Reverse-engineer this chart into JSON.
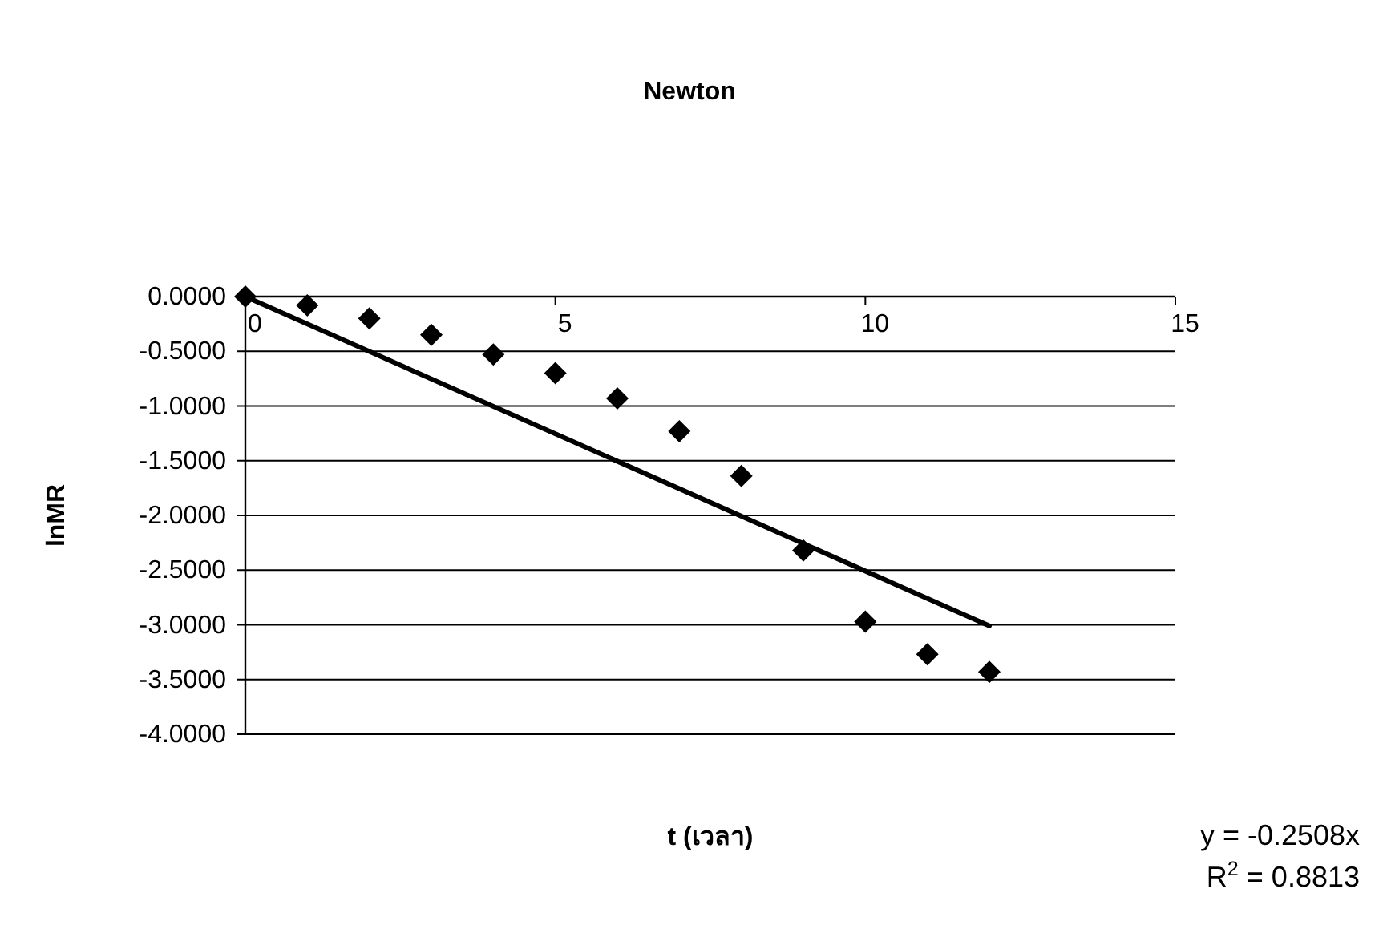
{
  "chart_data": {
    "type": "scatter",
    "title": "Newton",
    "xlabel": "t (เวลา)",
    "ylabel": "lnMR",
    "xlim": [
      0,
      15
    ],
    "xticks": [
      0,
      5,
      10,
      15
    ],
    "ylim": [
      -4,
      0
    ],
    "yticks": [
      {
        "value": 0,
        "label": "0.0000"
      },
      {
        "value": -0.5,
        "label": "-0.5000"
      },
      {
        "value": -1,
        "label": "-1.0000"
      },
      {
        "value": -1.5,
        "label": "-1.5000"
      },
      {
        "value": -2,
        "label": "-2.0000"
      },
      {
        "value": -2.5,
        "label": "-2.5000"
      },
      {
        "value": -3,
        "label": "-3.0000"
      },
      {
        "value": -3.5,
        "label": "-3.5000"
      },
      {
        "value": -4,
        "label": "-4.0000"
      }
    ],
    "grid": "y",
    "line_style": "solid",
    "series": [
      {
        "marker": "diamond",
        "color": "#000000",
        "x": [
          0,
          1,
          2,
          3,
          4,
          5,
          6,
          7,
          8,
          9,
          10,
          11,
          12
        ],
        "values": [
          0,
          -0.08,
          -0.2,
          -0.35,
          -0.53,
          -0.7,
          -0.93,
          -1.23,
          -1.64,
          -2.32,
          -2.97,
          -3.27,
          -3.43
        ]
      },
      {
        "type": "line",
        "color": "#000000",
        "x": [
          0,
          12
        ],
        "values": [
          0,
          -3.01
        ]
      }
    ],
    "annotations": [
      "y = -0.2508x",
      "R$^{2}$ = 0.8813"
    ]
  }
}
